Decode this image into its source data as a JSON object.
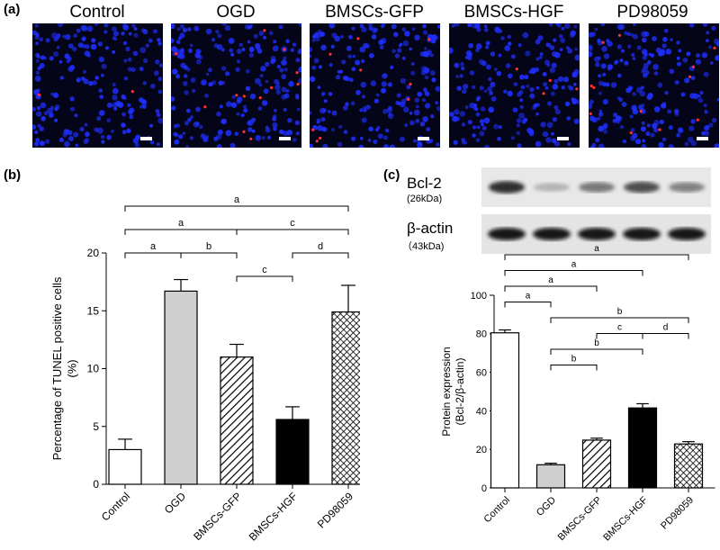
{
  "figure": {
    "panel_a": {
      "label": "(a)",
      "titles": [
        "Control",
        "OGD",
        "BMSCs-GFP",
        "BMSCs-HGF",
        "PD98059"
      ]
    },
    "panel_b": {
      "label": "(b)"
    },
    "panel_c": {
      "label": "(c)",
      "blots": [
        {
          "name": "Bcl-2",
          "size": "(26kDa)"
        },
        {
          "name": "β-actin",
          "size": "（43kDa)"
        }
      ]
    }
  },
  "colors": {
    "nucleus": "#1f2fff",
    "tunel": "#ff3030",
    "background": "#05051a"
  },
  "chart_data": [
    {
      "type": "bar",
      "panel": "(b)",
      "ylabel": "Percentage of TUNEL positive cells\n(%)",
      "ylabel_lines": [
        "Percentage of TUNEL positive cells",
        "(%)"
      ],
      "ylim": [
        0,
        20
      ],
      "yticks": [
        0,
        5,
        10,
        15,
        20
      ],
      "categories": [
        "Control",
        "OGD",
        "BMSCs-GFP",
        "BMSCs-HGF",
        "PD98059"
      ],
      "values": [
        3.0,
        16.7,
        11.0,
        5.6,
        14.9
      ],
      "errors": [
        0.9,
        1.0,
        1.1,
        1.1,
        2.3
      ],
      "patterns": [
        "white",
        "gray",
        "hatch",
        "black",
        "crosshatch"
      ],
      "significance": [
        {
          "from": 0,
          "to": 4,
          "label": "a",
          "level": 4
        },
        {
          "from": 0,
          "to": 2,
          "label": "a",
          "level": 3
        },
        {
          "from": 2,
          "to": 4,
          "label": "c",
          "level": 3
        },
        {
          "from": 0,
          "to": 1,
          "label": "a",
          "level": 2
        },
        {
          "from": 1,
          "to": 2,
          "label": "b",
          "level": 2
        },
        {
          "from": 3,
          "to": 4,
          "label": "d",
          "level": 2
        },
        {
          "from": 2,
          "to": 3,
          "label": "c",
          "level": 1
        }
      ]
    },
    {
      "type": "bar",
      "panel": "(c)",
      "ylabel": "Protein expression\n(Bcl-2/β-actin)",
      "ylabel_lines": [
        "Protein expression",
        "(Bcl-2/β-actin)"
      ],
      "ylim": [
        0,
        100
      ],
      "yticks": [
        0,
        20,
        40,
        60,
        80,
        100
      ],
      "categories": [
        "Control",
        "OGD",
        "BMSCs-GFP",
        "BMSCs-HGF",
        "PD98059"
      ],
      "values": [
        80.5,
        12.0,
        24.8,
        41.5,
        22.8
      ],
      "errors": [
        1.5,
        0.8,
        1.0,
        2.2,
        1.2
      ],
      "patterns": [
        "white",
        "gray",
        "hatch",
        "black",
        "crosshatch"
      ],
      "significance": [
        {
          "from": 0,
          "to": 4,
          "label": "a",
          "level": 7
        },
        {
          "from": 0,
          "to": 3,
          "label": "a",
          "level": 6
        },
        {
          "from": 0,
          "to": 2,
          "label": "a",
          "level": 5
        },
        {
          "from": 0,
          "to": 1,
          "label": "a",
          "level": 4
        },
        {
          "from": 1,
          "to": 4,
          "label": "b",
          "level": 3
        },
        {
          "from": 2,
          "to": 3,
          "label": "c",
          "level": 2
        },
        {
          "from": 3,
          "to": 4,
          "label": "d",
          "level": 2
        },
        {
          "from": 1,
          "to": 3,
          "label": "b",
          "level": 1
        },
        {
          "from": 1,
          "to": 2,
          "label": "b",
          "level": 0
        }
      ]
    }
  ]
}
